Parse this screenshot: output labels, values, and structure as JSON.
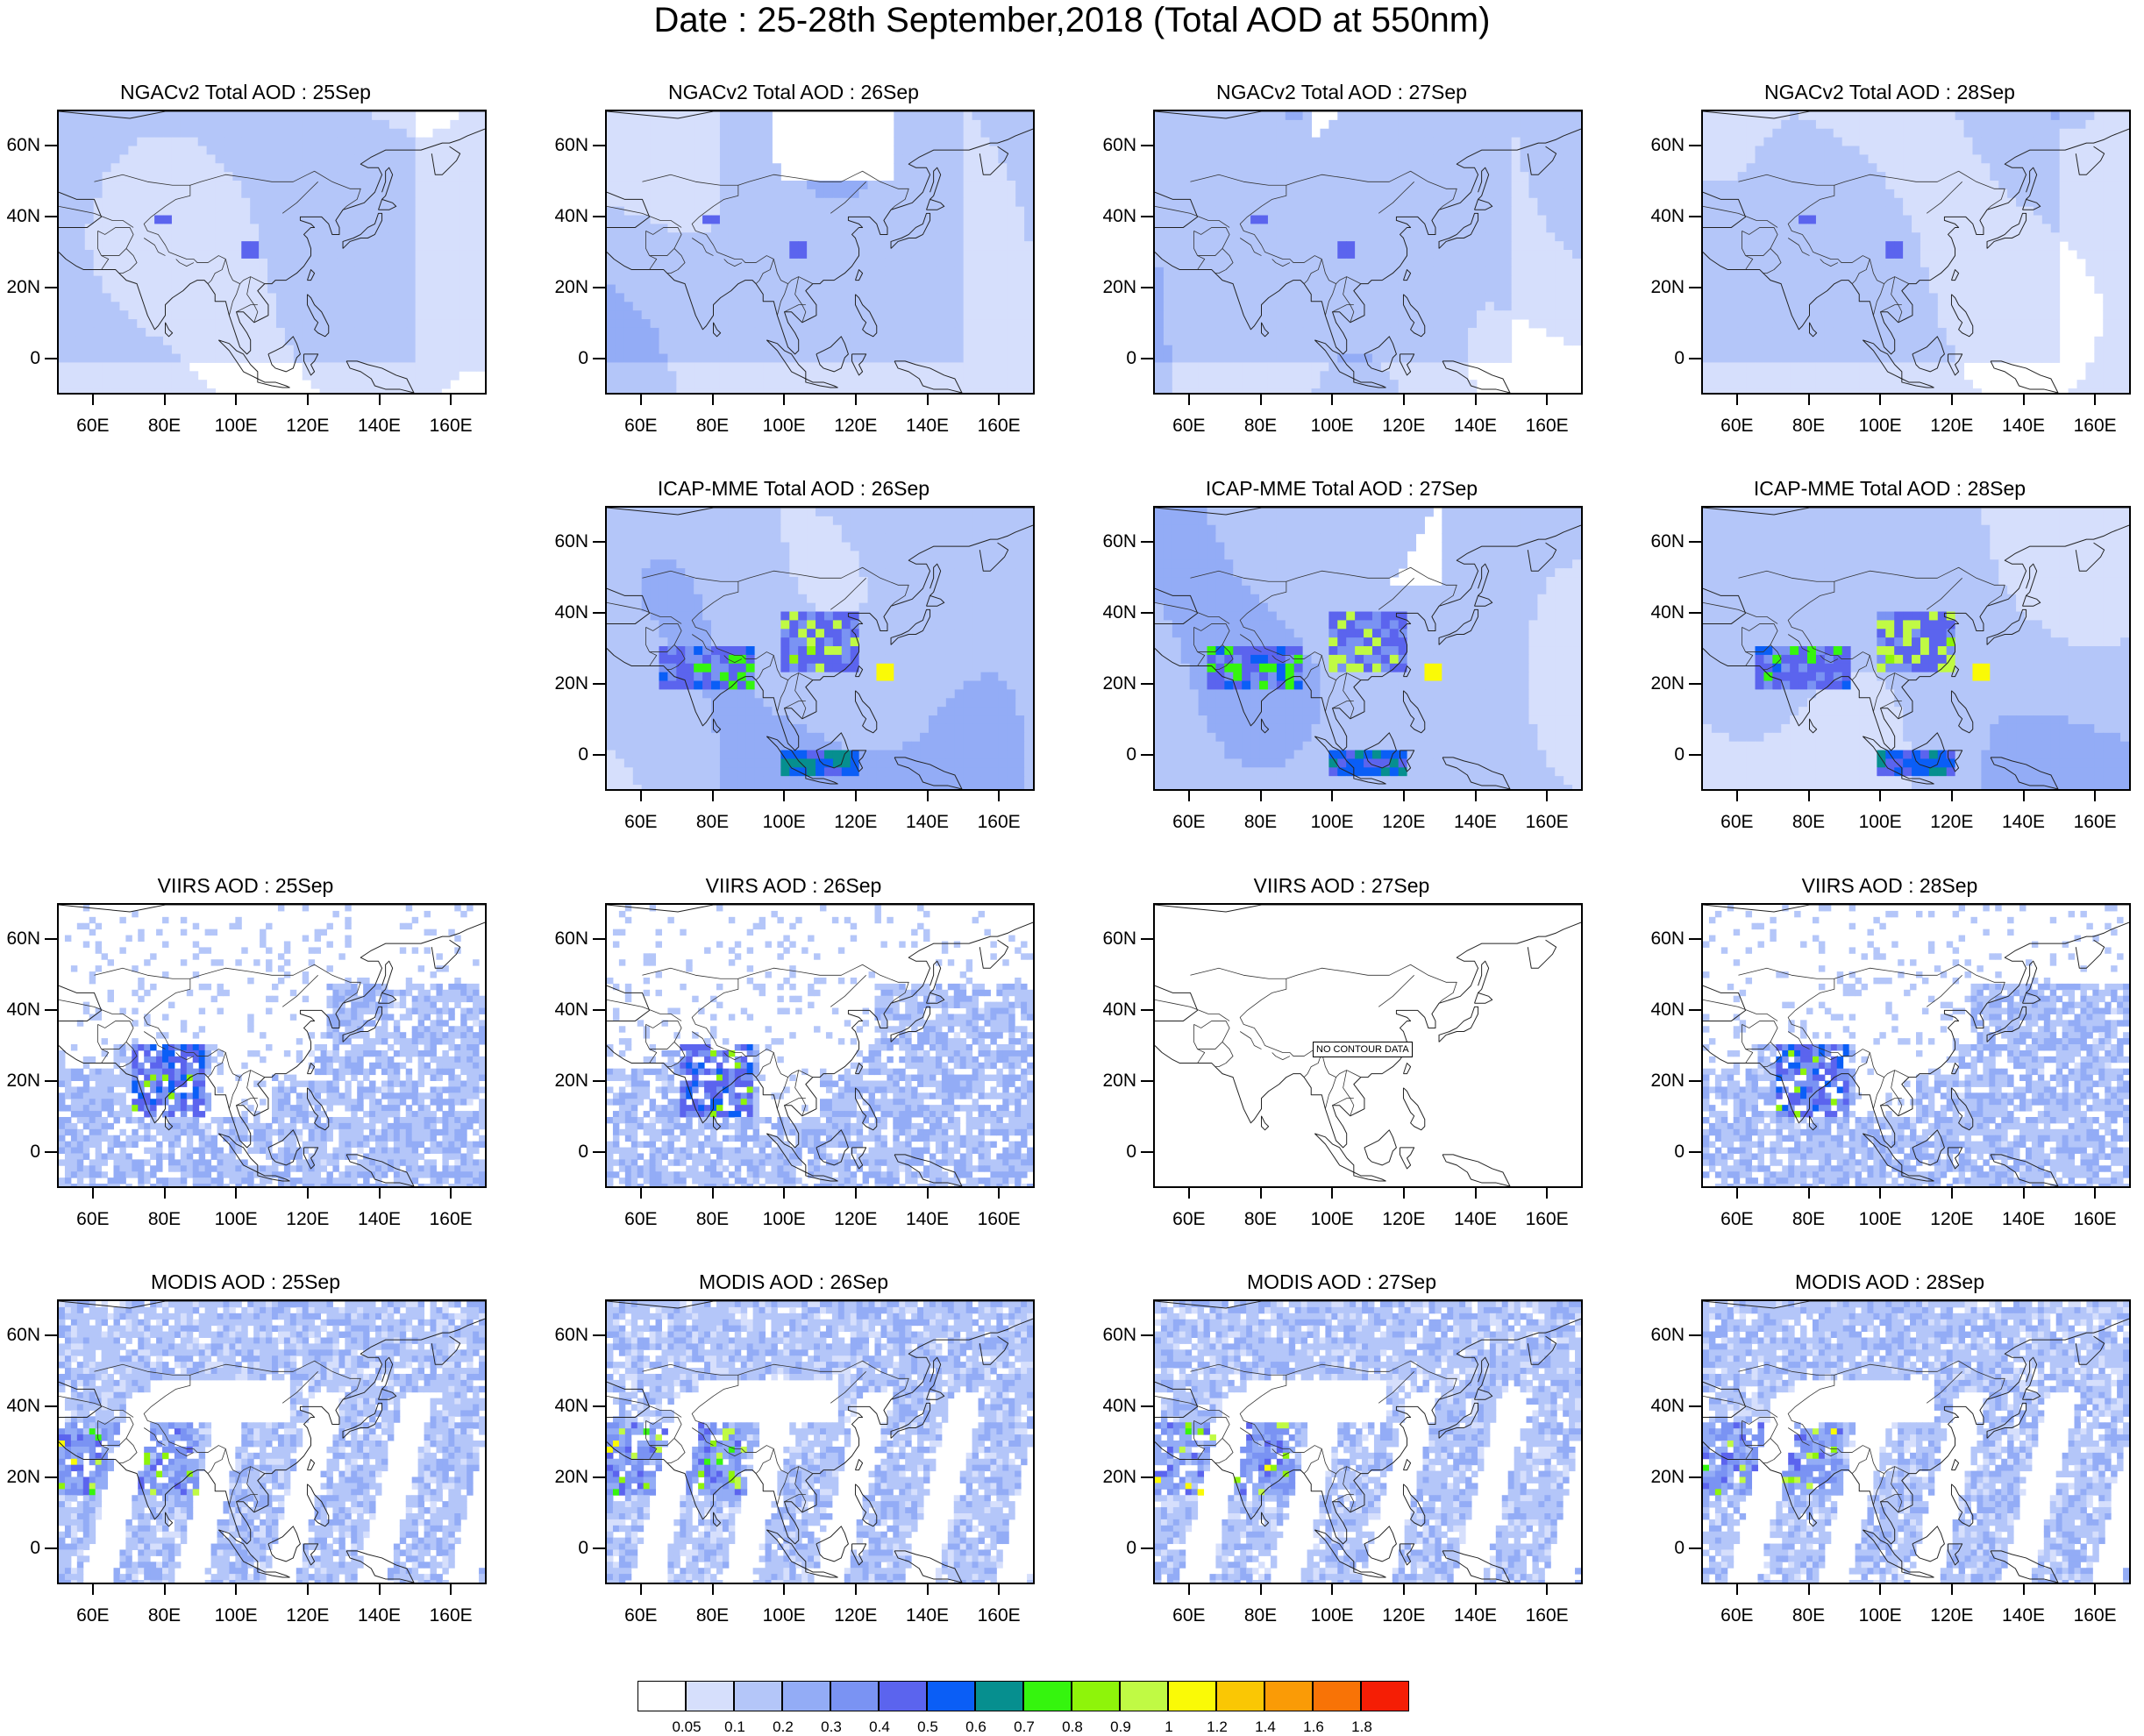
{
  "title": "Date : 25-28th September,2018 (Total AOD at 550nm)",
  "axes": {
    "lat_labels": [
      "60N",
      "40N",
      "20N",
      "0"
    ],
    "lat_values": [
      60,
      40,
      20,
      0
    ],
    "lon_labels": [
      "60E",
      "80E",
      "100E",
      "120E",
      "140E",
      "160E"
    ],
    "lon_values": [
      60,
      80,
      100,
      120,
      140,
      160
    ],
    "lat_range": [
      -10,
      70
    ],
    "lon_range": [
      50,
      170
    ]
  },
  "panels": [
    {
      "title": "NGACv2 Total AOD : 25Sep",
      "row": 0,
      "col": 0,
      "kind": "model-smooth"
    },
    {
      "title": "NGACv2 Total AOD : 26Sep",
      "row": 0,
      "col": 1,
      "kind": "model-smooth"
    },
    {
      "title": "NGACv2 Total AOD : 27Sep",
      "row": 0,
      "col": 2,
      "kind": "model-smooth"
    },
    {
      "title": "NGACv2 Total AOD : 28Sep",
      "row": 0,
      "col": 3,
      "kind": "model-smooth"
    },
    {
      "title": "ICAP-MME Total AOD : 26Sep",
      "row": 1,
      "col": 1,
      "kind": "model-hotspots"
    },
    {
      "title": "ICAP-MME Total AOD : 27Sep",
      "row": 1,
      "col": 2,
      "kind": "model-hotspots"
    },
    {
      "title": "ICAP-MME Total AOD : 28Sep",
      "row": 1,
      "col": 3,
      "kind": "model-hotspots"
    },
    {
      "title": "VIIRS AOD : 25Sep",
      "row": 2,
      "col": 0,
      "kind": "satellite"
    },
    {
      "title": "VIIRS AOD : 26Sep",
      "row": 2,
      "col": 1,
      "kind": "satellite"
    },
    {
      "title": "VIIRS AOD : 27Sep",
      "row": 2,
      "col": 2,
      "kind": "empty",
      "note": "NO CONTOUR DATA"
    },
    {
      "title": "VIIRS AOD : 28Sep",
      "row": 2,
      "col": 3,
      "kind": "satellite"
    },
    {
      "title": "MODIS AOD : 25Sep",
      "row": 3,
      "col": 0,
      "kind": "satellite-strips"
    },
    {
      "title": "MODIS AOD : 26Sep",
      "row": 3,
      "col": 1,
      "kind": "satellite-strips"
    },
    {
      "title": "MODIS AOD : 27Sep",
      "row": 3,
      "col": 2,
      "kind": "satellite-strips"
    },
    {
      "title": "MODIS AOD : 28Sep",
      "row": 3,
      "col": 3,
      "kind": "satellite-strips"
    }
  ],
  "colorbar": {
    "labels": [
      "0.05",
      "0.1",
      "0.2",
      "0.3",
      "0.4",
      "0.5",
      "0.6",
      "0.7",
      "0.8",
      "0.9",
      "1",
      "1.2",
      "1.4",
      "1.6",
      "1.8"
    ],
    "colors": [
      "#ffffff",
      "#d6dffc",
      "#b4c6f9",
      "#93acf6",
      "#7a93f3",
      "#5b64ee",
      "#0a5ef6",
      "#068f8f",
      "#35f50e",
      "#8ef40a",
      "#c0fa44",
      "#fafa06",
      "#fac704",
      "#fa9b06",
      "#f87306",
      "#f51e05"
    ]
  }
}
